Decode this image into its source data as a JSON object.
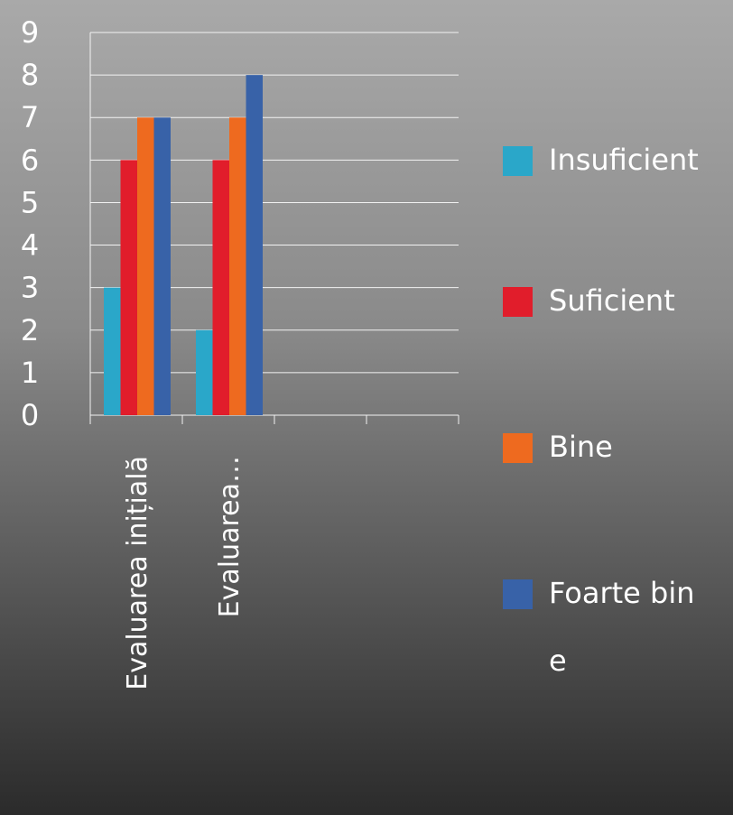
{
  "chart_data": {
    "type": "bar",
    "categories": [
      "Evaluarea inițială",
      "Evaluarea…",
      null,
      null
    ],
    "series": [
      {
        "name": "Insuficient",
        "color": "#2aa7c9",
        "values": [
          3,
          2,
          null,
          null
        ]
      },
      {
        "name": "Suficient",
        "color": "#e11d2b",
        "values": [
          6,
          6,
          null,
          null
        ]
      },
      {
        "name": "Bine",
        "color": "#ee6a1f",
        "values": [
          7,
          7,
          null,
          null
        ]
      },
      {
        "name": "Foarte bine",
        "color": "#3862a8",
        "values": [
          7,
          8,
          null,
          null
        ]
      }
    ],
    "ylim": [
      0,
      9
    ],
    "yticks": [
      0,
      1,
      2,
      3,
      4,
      5,
      6,
      7,
      8,
      9
    ],
    "grid": true,
    "legend": "right"
  }
}
